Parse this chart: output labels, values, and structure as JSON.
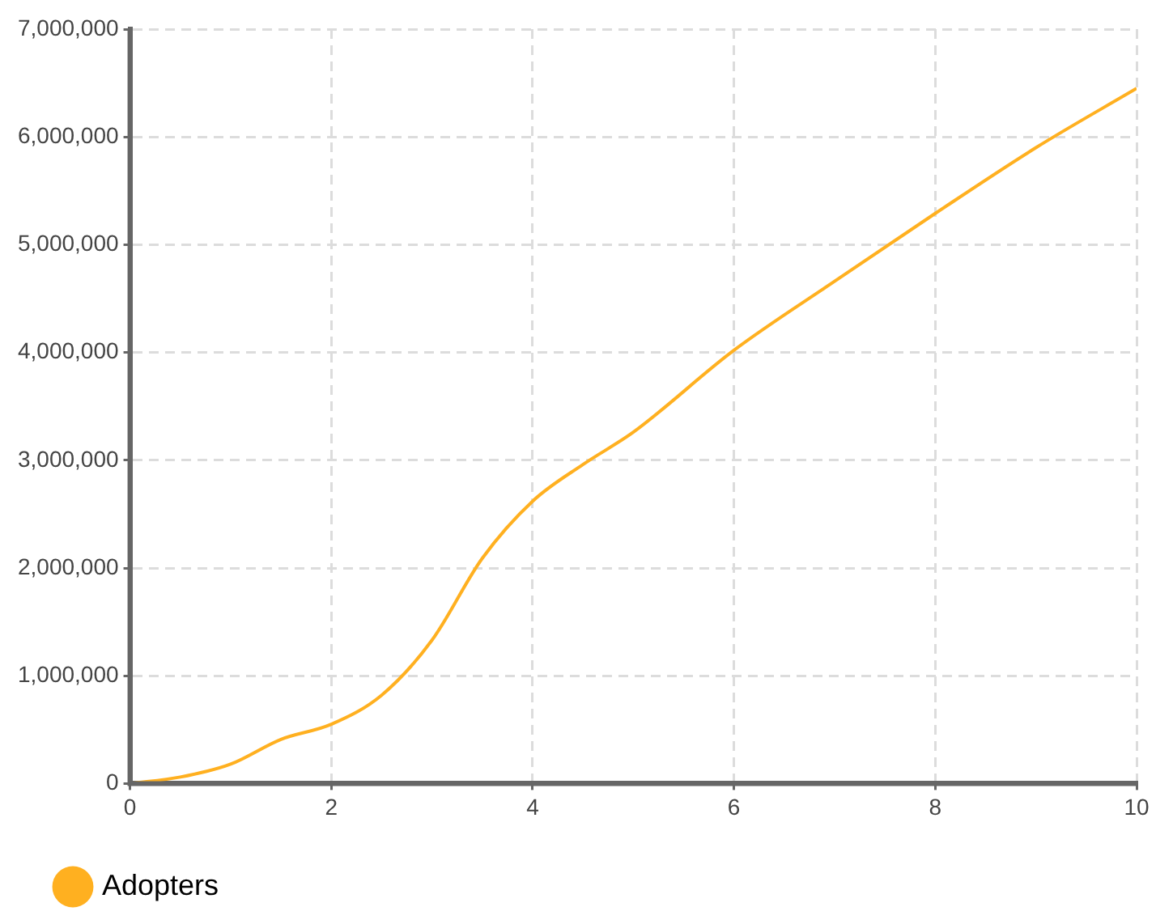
{
  "chart_data": {
    "type": "line",
    "x": [
      0,
      0.5,
      1,
      1.5,
      2,
      2.5,
      3,
      3.5,
      4,
      4.5,
      5,
      6,
      7,
      8,
      9,
      10
    ],
    "series": [
      {
        "name": "Adopters",
        "color": "#ffb020",
        "values": [
          0,
          60000,
          180000,
          410000,
          550000,
          820000,
          1330000,
          2090000,
          2620000,
          2960000,
          3260000,
          4020000,
          4660000,
          5290000,
          5900000,
          6450000
        ]
      }
    ],
    "xlim": [
      0,
      10
    ],
    "xticks": [
      0,
      2,
      4,
      6,
      8,
      10
    ],
    "ylim": [
      0,
      7000000
    ],
    "yticks": [
      0,
      {
        "value": 1000000,
        "label": "1,000,000"
      },
      {
        "value": 2000000,
        "label": "2,000,000"
      },
      {
        "value": 3000000,
        "label": "3,000,000"
      },
      {
        "value": 4000000,
        "label": "4,000,000"
      },
      {
        "value": 5000000,
        "label": "5,000,000"
      },
      {
        "value": 6000000,
        "label": "6,000,000"
      },
      {
        "value": 7000000,
        "label": "7,000,000"
      }
    ],
    "grid": true,
    "legend": "bottom left",
    "marker": "none",
    "line_style": "solid"
  }
}
